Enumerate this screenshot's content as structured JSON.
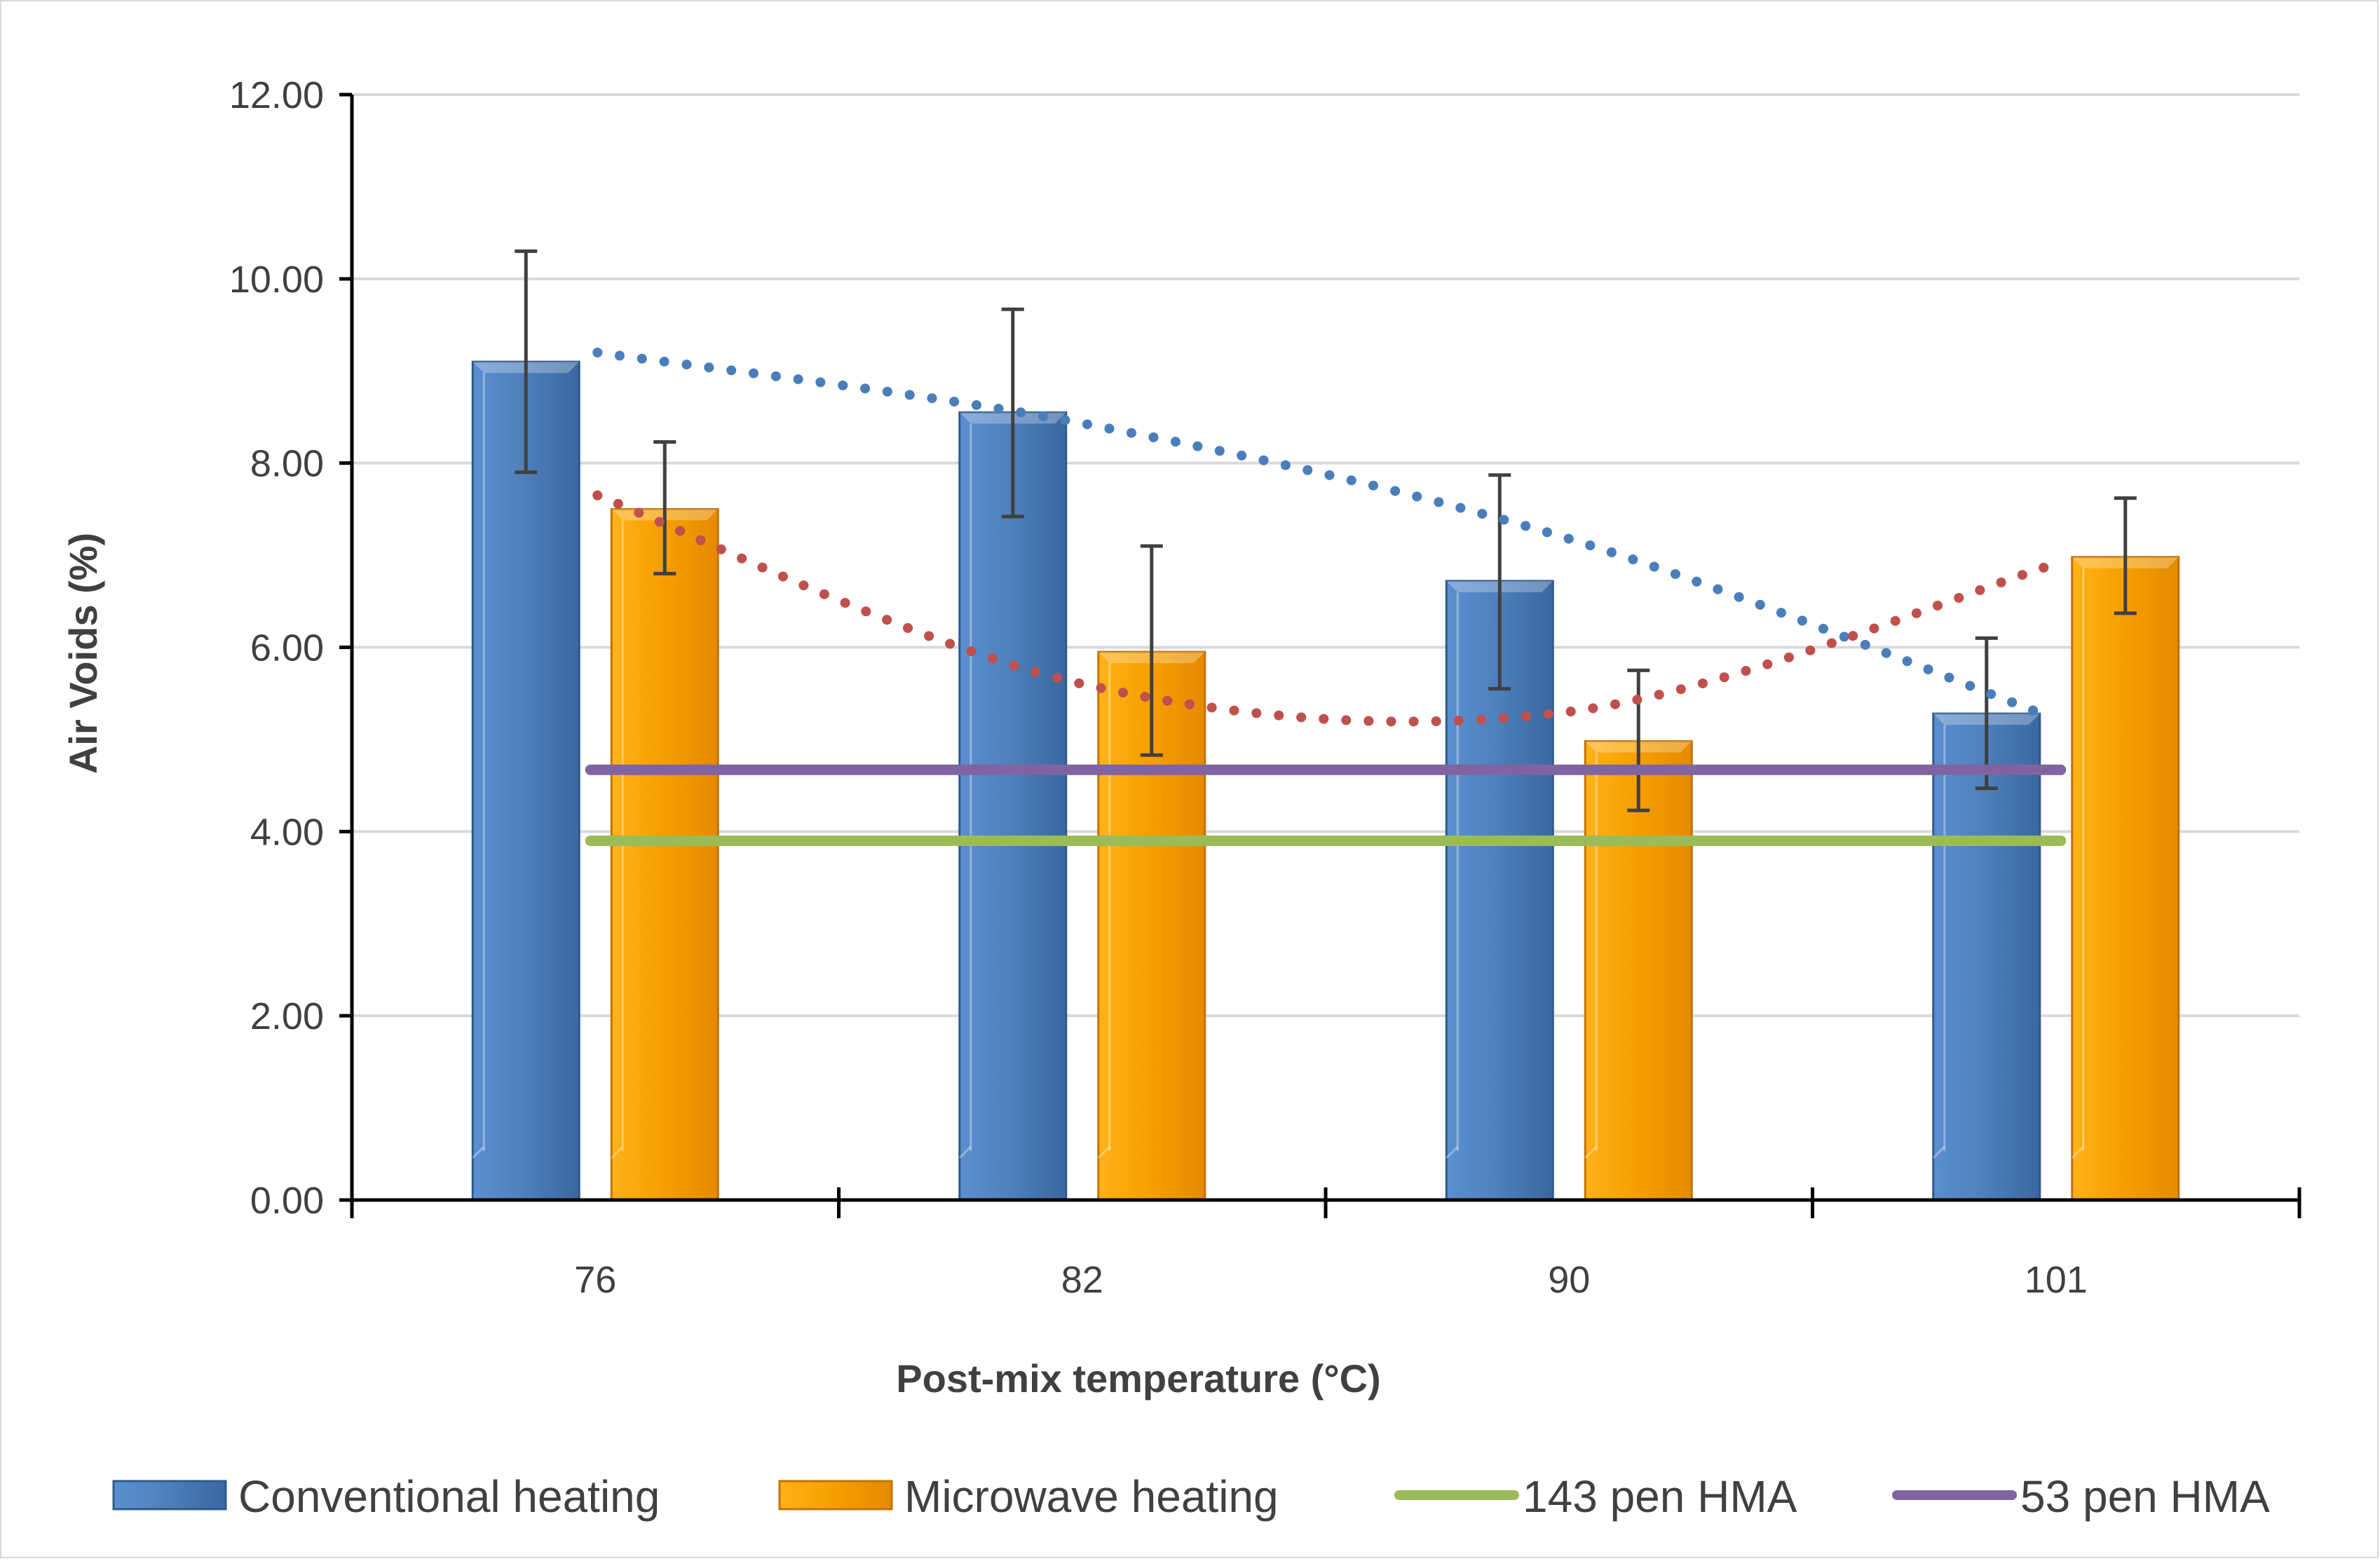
{
  "chart_data": {
    "type": "bar",
    "title": "",
    "xlabel": "Post-mix temperature (°C)",
    "ylabel": "Air Voids (%)",
    "ylim": [
      0,
      12
    ],
    "y_ticks": [
      "0.00",
      "2.00",
      "4.00",
      "6.00",
      "8.00",
      "10.00",
      "12.00"
    ],
    "grid": true,
    "legend_position": "bottom",
    "categories": [
      "76",
      "82",
      "90",
      "101"
    ],
    "series": [
      {
        "name": "Conventional heating",
        "kind": "bar",
        "color": "#4f81bd",
        "values": [
          9.1,
          8.55,
          6.72,
          5.28
        ],
        "error_low": [
          7.9,
          7.42,
          5.55,
          4.47
        ],
        "error_high": [
          10.3,
          9.67,
          7.87,
          6.1
        ],
        "trend_color": "#4a7ebb",
        "trend_values": [
          9.2,
          8.43,
          7.18,
          5.23
        ]
      },
      {
        "name": "Microwave heating",
        "kind": "bar",
        "color": "#f79b00",
        "values": [
          7.5,
          5.95,
          4.98,
          6.98
        ],
        "error_low": [
          6.8,
          4.83,
          4.23,
          6.37
        ],
        "error_high": [
          8.23,
          7.1,
          5.75,
          7.62
        ],
        "trend_color": "#c0504d",
        "trend_values": [
          7.65,
          5.6,
          5.3,
          6.9
        ]
      },
      {
        "name": "143 pen HMA",
        "kind": "line",
        "color": "#9bbb59",
        "value": 3.9
      },
      {
        "name": "53 pen HMA",
        "kind": "line",
        "color": "#8064a2",
        "value": 4.67
      }
    ]
  }
}
